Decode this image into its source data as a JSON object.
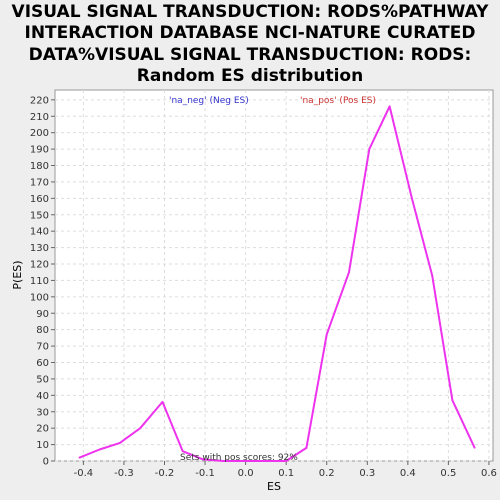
{
  "chart_data": {
    "type": "line",
    "title_lines": [
      "VISUAL SIGNAL TRANSDUCTION: RODS%PATHWAY",
      "INTERACTION DATABASE NCI-NATURE CURATED",
      "DATA%VISUAL SIGNAL TRANSDUCTION: RODS:",
      "Random ES distribution"
    ],
    "xlabel": "ES",
    "ylabel": "P(ES)",
    "xlim": [
      -0.47,
      0.61
    ],
    "ylim": [
      0,
      226
    ],
    "xticks": [
      -0.4,
      -0.3,
      -0.2,
      -0.1,
      0.0,
      0.1,
      0.2,
      0.3,
      0.4,
      0.5,
      0.6
    ],
    "xtick_labels": [
      "-0.4",
      "-0.3",
      "-0.2",
      "-0.1",
      "0.0",
      "0.1",
      "0.2",
      "0.3",
      "0.4",
      "0.5",
      "0.6"
    ],
    "yticks": [
      0,
      10,
      20,
      30,
      40,
      50,
      60,
      70,
      80,
      90,
      100,
      110,
      120,
      130,
      140,
      150,
      160,
      170,
      180,
      190,
      200,
      210,
      220
    ],
    "ytick_labels": [
      "0",
      "10",
      "20",
      "30",
      "40",
      "50",
      "60",
      "70",
      "80",
      "90",
      "100",
      "110",
      "120",
      "130",
      "140",
      "150",
      "160",
      "170",
      "180",
      "190",
      "200",
      "210",
      "220"
    ],
    "grid": true,
    "series": [
      {
        "color": "#ee33ee",
        "x": [
          -0.41,
          -0.36,
          -0.31,
          -0.26,
          -0.205,
          -0.155,
          -0.105,
          -0.055,
          0.0,
          0.05,
          0.1,
          0.15,
          0.2,
          0.255,
          0.305,
          0.355,
          0.41,
          0.46,
          0.51,
          0.565
        ],
        "y": [
          2,
          7,
          11,
          20,
          36,
          6,
          1,
          0,
          0,
          0,
          0,
          8,
          77,
          115,
          190,
          216,
          160,
          113,
          37,
          8
        ]
      }
    ],
    "legend": {
      "placement": "top-center",
      "entries": [
        {
          "label": "'na_neg' (Neg ES)",
          "color": "#3333cc"
        },
        {
          "label": "'na_pos' (Pos ES)",
          "color": "#cc3333"
        }
      ]
    },
    "annotation": "Sets with pos scores: 92%"
  }
}
